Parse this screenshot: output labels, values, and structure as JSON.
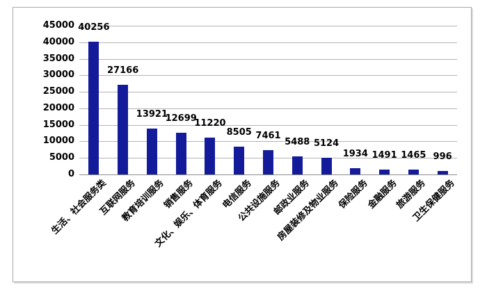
{
  "chart_data": {
    "type": "bar",
    "title": "",
    "xlabel": "",
    "ylabel": "",
    "categories": [
      "生活、社会服务类",
      "互联网服务",
      "教育培训服务",
      "销售服务",
      "文化、娱乐、体育服务",
      "电信服务",
      "公共设施服务",
      "邮政业服务",
      "房屋装修及物业服务",
      "保险服务",
      "金融服务",
      "旅游服务",
      "卫生保健服务"
    ],
    "values": [
      40256,
      27166,
      13921,
      12699,
      11220,
      8505,
      7461,
      5488,
      5124,
      1934,
      1491,
      1465,
      996
    ],
    "data_labels": [
      "40256",
      "27166",
      "13921",
      "12699",
      "11220",
      "8505",
      "7461",
      "5488",
      "5124",
      "1934",
      "1491",
      "1465",
      "996"
    ],
    "ylim": [
      0,
      45000
    ],
    "ytick_interval": 5000,
    "yticks": [
      "45000",
      "40000",
      "35000",
      "30000",
      "25000",
      "20000",
      "15000",
      "10000",
      "5000",
      "0"
    ],
    "grid": true,
    "legend_position": "none",
    "x_label_rotation_deg": 45,
    "colors": {
      "bar": "#131b9b",
      "gridline": "#b3b3b3",
      "axis_line": "#8c8c8c",
      "text": "#000000",
      "frame_border": "#a9a9a9",
      "background": "#ffffff"
    }
  }
}
